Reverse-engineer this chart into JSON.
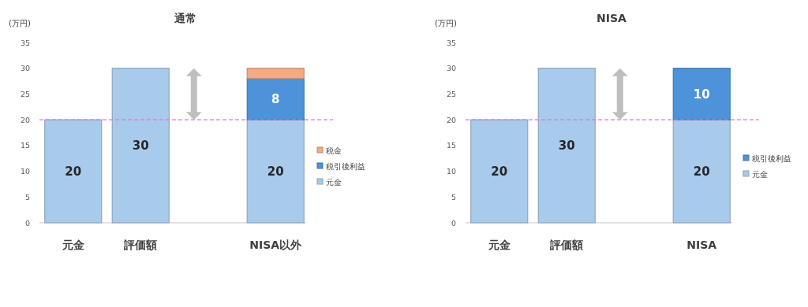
{
  "chart_data": [
    {
      "type": "bar",
      "title": "通常",
      "ylabel": "(万円)",
      "categories": [
        "元金",
        "評価額",
        null,
        "NISA以外"
      ],
      "stacked": true,
      "ylim": [
        0,
        35
      ],
      "yticks": [
        0,
        5,
        10,
        15,
        20,
        25,
        30,
        35
      ],
      "legend": "right",
      "ref_lines": [
        {
          "axis": "y",
          "value": 20,
          "color": "#e070dc",
          "line_style": "dashed"
        }
      ],
      "series": [
        {
          "name": "元金",
          "color": "#a9cbeb",
          "values": [
            20,
            30,
            null,
            20
          ],
          "value_labels": [
            "20",
            "30",
            null,
            "20"
          ]
        },
        {
          "name": "税引後利益",
          "color": "#4d93d9",
          "values": [
            null,
            null,
            null,
            8
          ],
          "value_labels": [
            null,
            null,
            null,
            "8"
          ]
        },
        {
          "name": "税金",
          "color": "#f3ab85",
          "values": [
            null,
            null,
            null,
            2
          ]
        }
      ]
    },
    {
      "type": "bar",
      "title": "NISA",
      "ylabel": "(万円)",
      "categories": [
        "元金",
        "評価額",
        null,
        "NISA"
      ],
      "stacked": true,
      "ylim": [
        0,
        35
      ],
      "yticks": [
        0,
        5,
        10,
        15,
        20,
        25,
        30,
        35
      ],
      "legend": "right",
      "ref_lines": [
        {
          "axis": "y",
          "value": 20,
          "color": "#e070dc",
          "line_style": "dashed"
        }
      ],
      "series": [
        {
          "name": "元金",
          "color": "#a9cbeb",
          "values": [
            20,
            30,
            null,
            20
          ],
          "value_labels": [
            "20",
            "30",
            null,
            "20"
          ]
        },
        {
          "name": "税引後利益",
          "color": "#4d93d9",
          "values": [
            null,
            null,
            null,
            10
          ],
          "value_labels": [
            null,
            null,
            null,
            "10"
          ]
        }
      ]
    }
  ]
}
